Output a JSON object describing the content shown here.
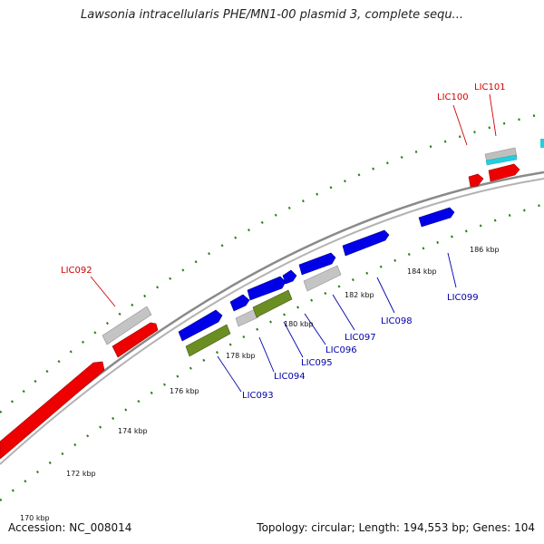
{
  "title": "Lawsonia intracellularis PHE/MN1-00 plasmid 3, complete sequ...",
  "footer": {
    "accession": "Accession: NC_008014",
    "summary": "Topology: circular; Length: 194,553 bp; Genes: 104"
  },
  "colors": {
    "backbone": "#8a8a8a",
    "ticks": "#2e7d1e",
    "label_red": "#d40000",
    "label_blue": "#0000aa",
    "feature_red": "#ee0000",
    "feature_blue": "#0000e8",
    "feature_green": "#6b8e23",
    "feature_gray": "#c4c4c4",
    "feature_cyan": "#22cfe0"
  },
  "scale_labels": [
    "170 kbp",
    "172 kbp",
    "174 kbp",
    "176 kbp",
    "178 kbp",
    "180 kbp",
    "182 kbp",
    "184 kbp",
    "186 kbp"
  ],
  "gene_labels": {
    "lic092": "LIC092",
    "lic093": "LIC093",
    "lic094": "LIC094",
    "lic095": "LIC095",
    "lic096": "LIC096",
    "lic097": "LIC097",
    "lic098": "LIC098",
    "lic099": "LIC099",
    "lic100": "LIC100",
    "lic101": "LIC101"
  }
}
